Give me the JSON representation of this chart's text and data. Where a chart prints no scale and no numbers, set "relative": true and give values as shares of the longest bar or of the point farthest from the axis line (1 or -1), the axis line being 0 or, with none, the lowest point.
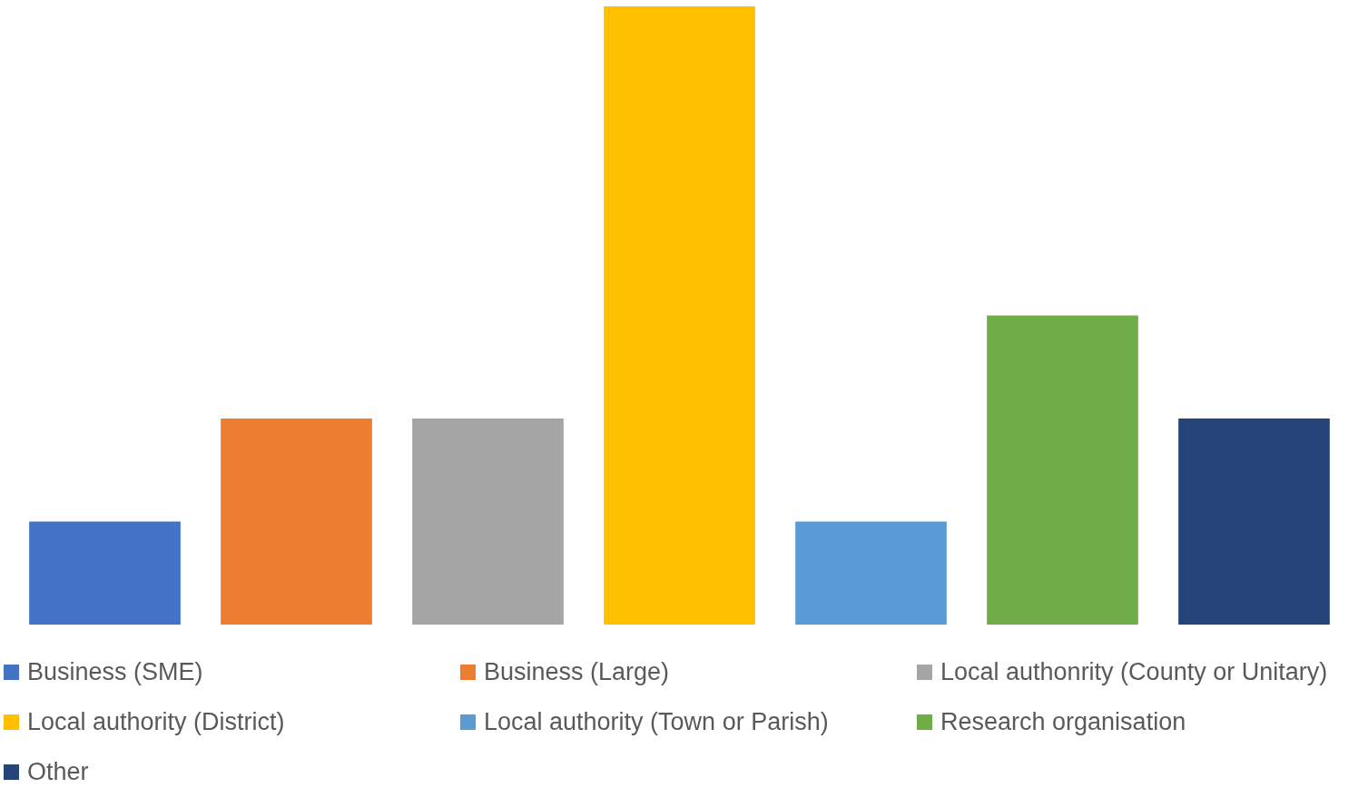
{
  "chart_data": {
    "type": "bar",
    "relative": true,
    "legend": "bottom",
    "stacked": true,
    "categories": [
      null,
      null,
      null,
      null,
      null,
      null,
      null
    ],
    "series": [
      {
        "name": "Business (SME)",
        "color": "#4472c4",
        "values": [
          0.1667,
          null,
          null,
          null,
          null,
          null,
          null
        ]
      },
      {
        "name": "Business (Large)",
        "color": "#ed7d31",
        "values": [
          null,
          0.3333,
          null,
          null,
          null,
          null,
          null
        ]
      },
      {
        "name": "Local authonrity (County or Unitary)",
        "color": "#a5a5a5",
        "values": [
          null,
          null,
          0.3333,
          null,
          null,
          null,
          null
        ]
      },
      {
        "name": "Local authority (District)",
        "color": "#ffc000",
        "values": [
          null,
          null,
          null,
          1,
          null,
          null,
          null
        ]
      },
      {
        "name": "Local authority (Town or Parish)",
        "color": "#5b9bd5",
        "values": [
          null,
          null,
          null,
          null,
          0.1667,
          null,
          null
        ]
      },
      {
        "name": "Research organisation",
        "color": "#70ad47",
        "values": [
          null,
          null,
          null,
          null,
          null,
          0.5,
          null
        ]
      },
      {
        "name": "Other",
        "color": "#264478",
        "values": [
          null,
          null,
          null,
          null,
          null,
          null,
          0.3333
        ]
      }
    ]
  }
}
